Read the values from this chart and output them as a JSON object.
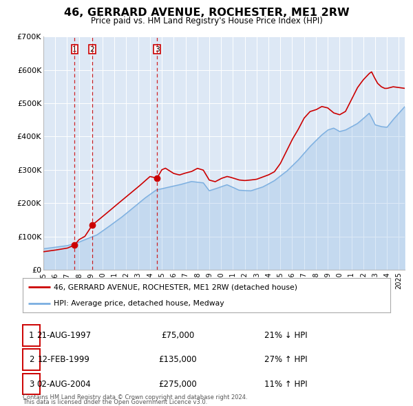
{
  "title": "46, GERRARD AVENUE, ROCHESTER, ME1 2RW",
  "subtitle": "Price paid vs. HM Land Registry's House Price Index (HPI)",
  "background_color": "#ffffff",
  "plot_bg_color": "#dde8f5",
  "grid_color": "#ffffff",
  "red_line_color": "#cc0000",
  "blue_line_color": "#7aaee0",
  "ylim": [
    0,
    700000
  ],
  "yticks": [
    0,
    100000,
    200000,
    300000,
    400000,
    500000,
    600000,
    700000
  ],
  "ytick_labels": [
    "£0",
    "£100K",
    "£200K",
    "£300K",
    "£400K",
    "£500K",
    "£600K",
    "£700K"
  ],
  "xstart": 1995.0,
  "xend": 2025.5,
  "xtick_years": [
    1995,
    1996,
    1997,
    1998,
    1999,
    2000,
    2001,
    2002,
    2003,
    2004,
    2005,
    2006,
    2007,
    2008,
    2009,
    2010,
    2011,
    2012,
    2013,
    2014,
    2015,
    2016,
    2017,
    2018,
    2019,
    2020,
    2021,
    2022,
    2023,
    2024,
    2025
  ],
  "sale_dates": [
    1997.639,
    1999.121,
    2004.586
  ],
  "sale_prices": [
    75000,
    135000,
    275000
  ],
  "sale_labels": [
    "1",
    "2",
    "3"
  ],
  "legend_entries": [
    "46, GERRARD AVENUE, ROCHESTER, ME1 2RW (detached house)",
    "HPI: Average price, detached house, Medway"
  ],
  "table_entries": [
    {
      "num": "1",
      "date": "21-AUG-1997",
      "price": "£75,000",
      "change": "21% ↓ HPI"
    },
    {
      "num": "2",
      "date": "12-FEB-1999",
      "price": "£135,000",
      "change": "27% ↑ HPI"
    },
    {
      "num": "3",
      "date": "02-AUG-2004",
      "price": "£275,000",
      "change": "11% ↑ HPI"
    }
  ],
  "footer_line1": "Contains HM Land Registry data © Crown copyright and database right 2024.",
  "footer_line2": "This data is licensed under the Open Government Licence v3.0."
}
